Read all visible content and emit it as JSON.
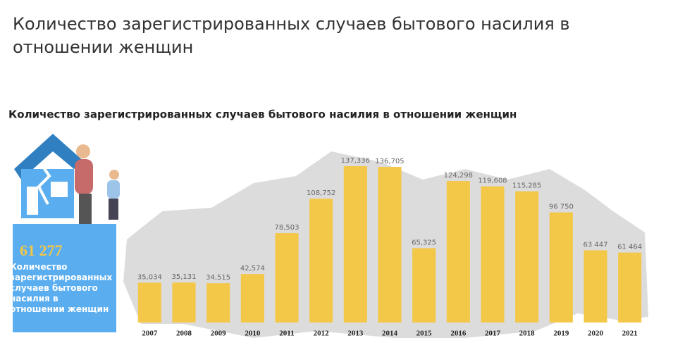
{
  "page_title": "Количество зарегистрированных случаев бытового насилия в отношении женщин",
  "chart_data": {
    "type": "bar",
    "title": "Количество зарегистрированных случаев бытового насилия в отношении женщин",
    "categories": [
      "2007",
      "2008",
      "2009",
      "2010",
      "2011",
      "2012",
      "2013",
      "2014",
      "2015",
      "2016",
      "2017",
      "2018",
      "2019",
      "2020",
      "2021"
    ],
    "values": [
      35034,
      35131,
      34515,
      42574,
      78503,
      108752,
      137336,
      136705,
      65325,
      124298,
      119608,
      115285,
      96750,
      63447,
      61464
    ],
    "value_labels": [
      "35,034",
      "35,131",
      "34,515",
      "42,574",
      "78,503",
      "108,752",
      "137,336",
      "136,705",
      "65,325",
      "124,298",
      "119,608",
      "115,285",
      "96 750",
      "63 447",
      "61 464"
    ],
    "color": "#f3c748"
  },
  "infobox": {
    "number": "61 277",
    "text": "Количество зарегистрированных случаев бытового насилия в отношении женщин"
  }
}
